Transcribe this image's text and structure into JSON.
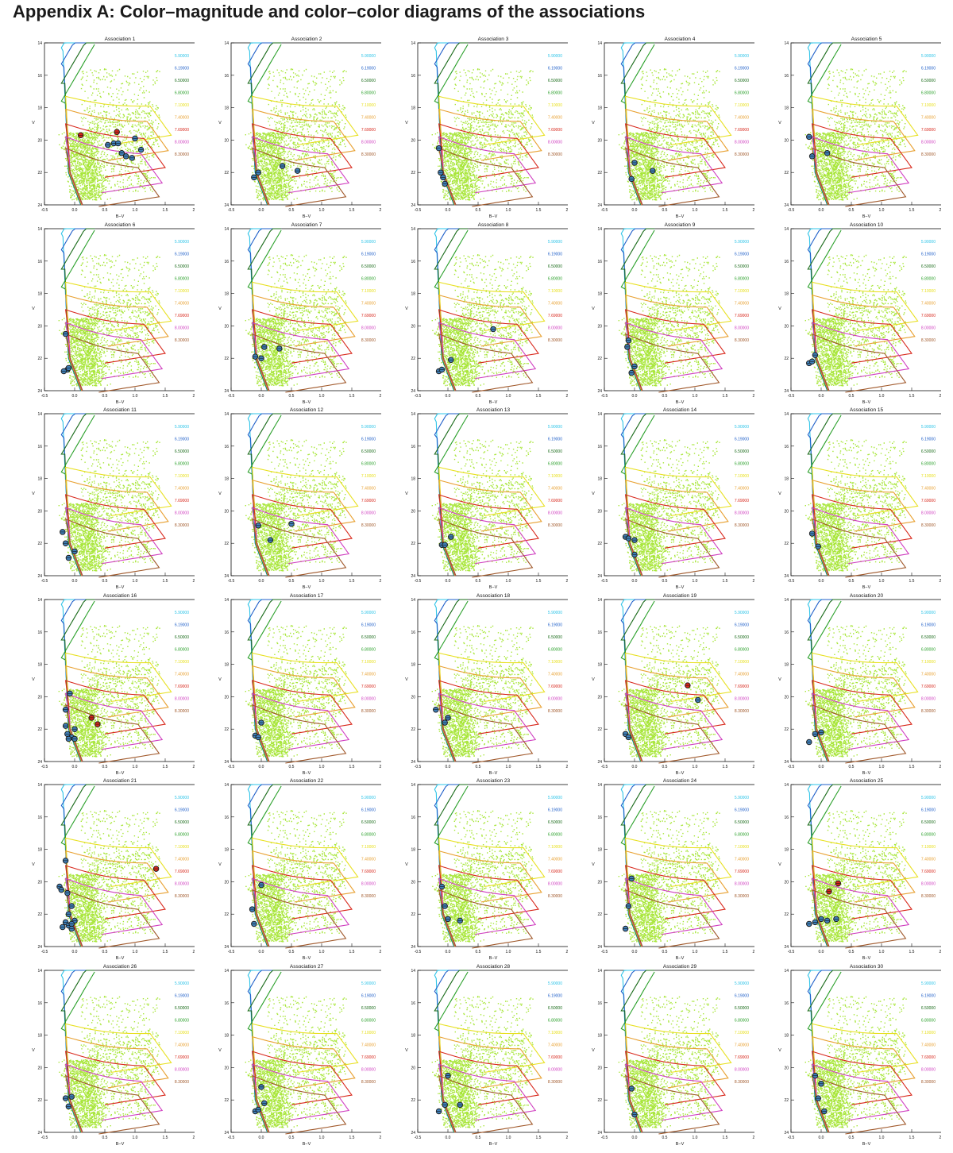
{
  "page": {
    "title": "Appendix A: Color–magnitude and color–color diagrams of the associations"
  },
  "colors": {
    "field_stars": "#a8e63a",
    "star_fill": "#3f7fb8",
    "star_fill_red": "#d8281c",
    "star_ring": "#1a1a1a"
  },
  "shared_axes": {
    "xlabel": "B−V",
    "ylabel": "V",
    "xlim": [
      -0.5,
      2.0
    ],
    "ylim": [
      24,
      14
    ],
    "x_ticks": [
      "-0.5",
      "0.0",
      "0.5",
      "1.0",
      "1.5",
      "2.0"
    ],
    "x_tick_values": [
      -0.5,
      0.0,
      0.5,
      1.0,
      1.5,
      2.0
    ],
    "y_ticks": [
      "14",
      "16",
      "18",
      "20",
      "22",
      "24"
    ],
    "y_tick_values": [
      14,
      16,
      18,
      20,
      22,
      24
    ]
  },
  "isochrones": [
    {
      "label": "5.90000",
      "color": "#2ec4e8"
    },
    {
      "label": "6.19000",
      "color": "#1f5fc9"
    },
    {
      "label": "6.50000",
      "color": "#1a6b1a"
    },
    {
      "label": "6.80000",
      "color": "#2aa02a"
    },
    {
      "label": "7.10000",
      "color": "#e8e020"
    },
    {
      "label": "7.40000",
      "color": "#e8a030"
    },
    {
      "label": "7.69000",
      "color": "#d8281c"
    },
    {
      "label": "8.00000",
      "color": "#d040c0"
    },
    {
      "label": "8.30000",
      "color": "#a0582a"
    }
  ],
  "chart_data": [
    {
      "type": "scatter",
      "title": "Association 1",
      "xlabel": "B−V",
      "ylabel": "V",
      "xlim": [
        -0.5,
        2.0
      ],
      "ylim": [
        24,
        14
      ],
      "series": [
        {
          "name": "members",
          "color": "#3f7fb8",
          "x": [
            0.55,
            0.65,
            0.72,
            0.78,
            0.85,
            0.95,
            1.0,
            1.1
          ],
          "y": [
            20.3,
            20.2,
            20.2,
            20.8,
            21.0,
            21.1,
            19.9,
            20.6
          ]
        },
        {
          "name": "members (red)",
          "color": "#d8281c",
          "x": [
            0.1,
            0.7
          ],
          "y": [
            19.7,
            19.5
          ]
        }
      ]
    },
    {
      "type": "scatter",
      "title": "Association 2",
      "xlabel": "B−V",
      "ylabel": "V",
      "xlim": [
        -0.5,
        2.0
      ],
      "ylim": [
        24,
        14
      ],
      "series": [
        {
          "name": "members",
          "color": "#3f7fb8",
          "x": [
            -0.12,
            -0.05,
            0.35,
            0.6
          ],
          "y": [
            22.3,
            22.0,
            21.6,
            21.9
          ]
        }
      ]
    },
    {
      "type": "scatter",
      "title": "Association 3",
      "xlabel": "B−V",
      "ylabel": "V",
      "xlim": [
        -0.5,
        2.0
      ],
      "ylim": [
        24,
        14
      ],
      "series": [
        {
          "name": "members",
          "color": "#3f7fb8",
          "x": [
            -0.15,
            -0.12,
            -0.08,
            -0.05
          ],
          "y": [
            20.5,
            22.0,
            22.3,
            22.7
          ]
        }
      ]
    },
    {
      "type": "scatter",
      "title": "Association 4",
      "xlabel": "B−V",
      "ylabel": "V",
      "xlim": [
        -0.5,
        2.0
      ],
      "ylim": [
        24,
        14
      ],
      "series": [
        {
          "name": "members",
          "color": "#3f7fb8",
          "x": [
            -0.05,
            0.0,
            0.3
          ],
          "y": [
            22.4,
            21.4,
            21.9
          ]
        }
      ]
    },
    {
      "type": "scatter",
      "title": "Association 5",
      "xlabel": "B−V",
      "ylabel": "V",
      "xlim": [
        -0.5,
        2.0
      ],
      "ylim": [
        24,
        14
      ],
      "series": [
        {
          "name": "members",
          "color": "#3f7fb8",
          "x": [
            -0.2,
            -0.15,
            0.1
          ],
          "y": [
            19.8,
            21.0,
            20.8
          ]
        }
      ]
    },
    {
      "type": "scatter",
      "title": "Association 6",
      "xlabel": "B−V",
      "ylabel": "V",
      "xlim": [
        -0.5,
        2.0
      ],
      "ylim": [
        24,
        14
      ],
      "series": [
        {
          "name": "members",
          "color": "#3f7fb8",
          "x": [
            -0.15,
            -0.12,
            -0.18,
            -0.1
          ],
          "y": [
            20.5,
            22.7,
            22.8,
            22.6
          ]
        }
      ]
    },
    {
      "type": "scatter",
      "title": "Association 7",
      "xlabel": "B−V",
      "ylabel": "V",
      "xlim": [
        -0.5,
        2.0
      ],
      "ylim": [
        24,
        14
      ],
      "series": [
        {
          "name": "members",
          "color": "#3f7fb8",
          "x": [
            -0.1,
            0.0,
            0.05,
            0.3
          ],
          "y": [
            21.9,
            22.0,
            21.3,
            21.4
          ]
        }
      ]
    },
    {
      "type": "scatter",
      "title": "Association 8",
      "xlabel": "B−V",
      "ylabel": "V",
      "xlim": [
        -0.5,
        2.0
      ],
      "ylim": [
        24,
        14
      ],
      "series": [
        {
          "name": "members",
          "color": "#3f7fb8",
          "x": [
            -0.15,
            -0.1,
            0.05,
            0.75
          ],
          "y": [
            22.8,
            22.7,
            22.1,
            20.2
          ]
        }
      ]
    },
    {
      "type": "scatter",
      "title": "Association 9",
      "xlabel": "B−V",
      "ylabel": "V",
      "xlim": [
        -0.5,
        2.0
      ],
      "ylim": [
        24,
        14
      ],
      "series": [
        {
          "name": "members",
          "color": "#3f7fb8",
          "x": [
            -0.12,
            -0.1,
            -0.05,
            0.0
          ],
          "y": [
            21.3,
            20.9,
            22.9,
            22.5
          ]
        }
      ]
    },
    {
      "type": "scatter",
      "title": "Association 10",
      "xlabel": "B−V",
      "ylabel": "V",
      "xlim": [
        -0.5,
        2.0
      ],
      "ylim": [
        24,
        14
      ],
      "series": [
        {
          "name": "members",
          "color": "#3f7fb8",
          "x": [
            -0.2,
            -0.15,
            -0.1
          ],
          "y": [
            22.3,
            22.2,
            21.8
          ]
        }
      ]
    },
    {
      "type": "scatter",
      "title": "Association 11",
      "xlabel": "B−V",
      "ylabel": "V",
      "xlim": [
        -0.5,
        2.0
      ],
      "ylim": [
        24,
        14
      ],
      "series": [
        {
          "name": "members",
          "color": "#3f7fb8",
          "x": [
            -0.2,
            -0.15,
            -0.1,
            0.0
          ],
          "y": [
            21.3,
            22.0,
            22.9,
            22.5
          ]
        }
      ]
    },
    {
      "type": "scatter",
      "title": "Association 12",
      "xlabel": "B−V",
      "ylabel": "V",
      "xlim": [
        -0.5,
        2.0
      ],
      "ylim": [
        24,
        14
      ],
      "series": [
        {
          "name": "members",
          "color": "#3f7fb8",
          "x": [
            -0.05,
            0.15,
            0.5
          ],
          "y": [
            20.9,
            21.8,
            20.8
          ]
        }
      ]
    },
    {
      "type": "scatter",
      "title": "Association 13",
      "xlabel": "B−V",
      "ylabel": "V",
      "xlim": [
        -0.5,
        2.0
      ],
      "ylim": [
        24,
        14
      ],
      "series": [
        {
          "name": "members",
          "color": "#3f7fb8",
          "x": [
            -0.1,
            -0.05,
            0.05
          ],
          "y": [
            22.1,
            22.1,
            21.6
          ]
        }
      ]
    },
    {
      "type": "scatter",
      "title": "Association 14",
      "xlabel": "B−V",
      "ylabel": "V",
      "xlim": [
        -0.5,
        2.0
      ],
      "ylim": [
        24,
        14
      ],
      "series": [
        {
          "name": "members",
          "color": "#3f7fb8",
          "x": [
            -0.15,
            -0.1,
            0.0,
            0.0
          ],
          "y": [
            21.6,
            21.7,
            21.8,
            22.7
          ]
        }
      ]
    },
    {
      "type": "scatter",
      "title": "Association 15",
      "xlabel": "B−V",
      "ylabel": "V",
      "xlim": [
        -0.5,
        2.0
      ],
      "ylim": [
        24,
        14
      ],
      "series": [
        {
          "name": "members",
          "color": "#3f7fb8",
          "x": [
            -0.15,
            -0.05
          ],
          "y": [
            21.4,
            22.2
          ]
        }
      ]
    },
    {
      "type": "scatter",
      "title": "Association 16",
      "xlabel": "B−V",
      "ylabel": "V",
      "xlim": [
        -0.5,
        2.0
      ],
      "ylim": [
        24,
        14
      ],
      "series": [
        {
          "name": "members",
          "color": "#3f7fb8",
          "x": [
            -0.15,
            -0.08,
            -0.15,
            -0.12,
            -0.05,
            0.0,
            -0.1,
            0.0
          ],
          "y": [
            20.8,
            19.8,
            21.8,
            22.3,
            22.5,
            22.0,
            22.6,
            22.6
          ]
        },
        {
          "name": "members (red)",
          "color": "#d8281c",
          "x": [
            0.28,
            0.38
          ],
          "y": [
            21.3,
            21.7
          ]
        }
      ]
    },
    {
      "type": "scatter",
      "title": "Association 17",
      "xlabel": "B−V",
      "ylabel": "V",
      "xlim": [
        -0.5,
        2.0
      ],
      "ylim": [
        24,
        14
      ],
      "series": [
        {
          "name": "members",
          "color": "#3f7fb8",
          "x": [
            -0.1,
            -0.05,
            0.0
          ],
          "y": [
            22.4,
            22.5,
            21.6
          ]
        }
      ]
    },
    {
      "type": "scatter",
      "title": "Association 18",
      "xlabel": "B−V",
      "ylabel": "V",
      "xlim": [
        -0.5,
        2.0
      ],
      "ylim": [
        24,
        14
      ],
      "series": [
        {
          "name": "members",
          "color": "#3f7fb8",
          "x": [
            -0.2,
            -0.05,
            0.0
          ],
          "y": [
            20.8,
            21.6,
            21.3
          ]
        }
      ]
    },
    {
      "type": "scatter",
      "title": "Association 19",
      "xlabel": "B−V",
      "ylabel": "V",
      "xlim": [
        -0.5,
        2.0
      ],
      "ylim": [
        24,
        14
      ],
      "series": [
        {
          "name": "members",
          "color": "#3f7fb8",
          "x": [
            -0.15,
            -0.1,
            1.05
          ],
          "y": [
            22.3,
            22.5,
            20.2
          ]
        },
        {
          "name": "members (red)",
          "color": "#d8281c",
          "x": [
            0.88
          ],
          "y": [
            19.3
          ]
        }
      ]
    },
    {
      "type": "scatter",
      "title": "Association 20",
      "xlabel": "B−V",
      "ylabel": "V",
      "xlim": [
        -0.5,
        2.0
      ],
      "ylim": [
        24,
        14
      ],
      "series": [
        {
          "name": "members",
          "color": "#3f7fb8",
          "x": [
            -0.2,
            -0.1,
            0.0
          ],
          "y": [
            22.8,
            22.3,
            22.2
          ]
        }
      ]
    },
    {
      "type": "scatter",
      "title": "Association 21",
      "xlabel": "B−V",
      "ylabel": "V",
      "xlim": [
        -0.5,
        2.0
      ],
      "ylim": [
        24,
        14
      ],
      "series": [
        {
          "name": "members",
          "color": "#3f7fb8",
          "x": [
            -0.25,
            -0.22,
            -0.15,
            -0.12,
            -0.05,
            0.0,
            -0.2,
            -0.15,
            -0.1,
            -0.05,
            -0.1,
            -0.05
          ],
          "y": [
            20.3,
            20.5,
            18.7,
            20.7,
            21.5,
            22.4,
            22.8,
            22.5,
            22.7,
            22.6,
            22.0,
            22.9
          ]
        },
        {
          "name": "members (red)",
          "color": "#d8281c",
          "x": [
            1.35
          ],
          "y": [
            19.2
          ]
        }
      ]
    },
    {
      "type": "scatter",
      "title": "Association 22",
      "xlabel": "B−V",
      "ylabel": "V",
      "xlim": [
        -0.5,
        2.0
      ],
      "ylim": [
        24,
        14
      ],
      "series": [
        {
          "name": "members",
          "color": "#3f7fb8",
          "x": [
            -0.15,
            -0.12,
            0.0
          ],
          "y": [
            21.7,
            22.6,
            20.2
          ]
        }
      ]
    },
    {
      "type": "scatter",
      "title": "Association 23",
      "xlabel": "B−V",
      "ylabel": "V",
      "xlim": [
        -0.5,
        2.0
      ],
      "ylim": [
        24,
        14
      ],
      "series": [
        {
          "name": "members",
          "color": "#3f7fb8",
          "x": [
            -0.1,
            -0.05,
            0.0,
            0.2
          ],
          "y": [
            20.3,
            21.5,
            22.3,
            22.4
          ]
        }
      ]
    },
    {
      "type": "scatter",
      "title": "Association 24",
      "xlabel": "B−V",
      "ylabel": "V",
      "xlim": [
        -0.5,
        2.0
      ],
      "ylim": [
        24,
        14
      ],
      "series": [
        {
          "name": "members",
          "color": "#3f7fb8",
          "x": [
            -0.1,
            -0.05,
            -0.15
          ],
          "y": [
            21.5,
            19.8,
            22.9
          ]
        }
      ]
    },
    {
      "type": "scatter",
      "title": "Association 25",
      "xlabel": "B−V",
      "ylabel": "V",
      "xlim": [
        -0.5,
        2.0
      ],
      "ylim": [
        24,
        14
      ],
      "series": [
        {
          "name": "members",
          "color": "#3f7fb8",
          "x": [
            -0.2,
            -0.1,
            0.0,
            0.1,
            0.25
          ],
          "y": [
            22.6,
            22.5,
            22.3,
            22.4,
            22.3
          ]
        },
        {
          "name": "members (red)",
          "color": "#d8281c",
          "x": [
            0.13,
            0.28
          ],
          "y": [
            20.6,
            20.1
          ]
        }
      ]
    },
    {
      "type": "scatter",
      "title": "Association 26",
      "xlabel": "B−V",
      "ylabel": "V",
      "xlim": [
        -0.5,
        2.0
      ],
      "ylim": [
        24,
        14
      ],
      "series": [
        {
          "name": "members",
          "color": "#3f7fb8",
          "x": [
            -0.15,
            -0.05,
            -0.1
          ],
          "y": [
            21.9,
            21.8,
            22.4
          ]
        }
      ]
    },
    {
      "type": "scatter",
      "title": "Association 27",
      "xlabel": "B−V",
      "ylabel": "V",
      "xlim": [
        -0.5,
        2.0
      ],
      "ylim": [
        24,
        14
      ],
      "series": [
        {
          "name": "members",
          "color": "#3f7fb8",
          "x": [
            -0.1,
            -0.05,
            0.0,
            0.05
          ],
          "y": [
            22.7,
            22.6,
            21.2,
            22.2
          ]
        }
      ]
    },
    {
      "type": "scatter",
      "title": "Association 28",
      "xlabel": "B−V",
      "ylabel": "V",
      "xlim": [
        -0.5,
        2.0
      ],
      "ylim": [
        24,
        14
      ],
      "series": [
        {
          "name": "members",
          "color": "#3f7fb8",
          "x": [
            -0.15,
            -0.05,
            0.0,
            0.2
          ],
          "y": [
            22.7,
            22.3,
            20.5,
            22.3
          ]
        }
      ]
    },
    {
      "type": "scatter",
      "title": "Association 29",
      "xlabel": "B−V",
      "ylabel": "V",
      "xlim": [
        -0.5,
        2.0
      ],
      "ylim": [
        24,
        14
      ],
      "series": [
        {
          "name": "members",
          "color": "#3f7fb8",
          "x": [
            -0.05,
            0.0
          ],
          "y": [
            21.3,
            22.9
          ]
        }
      ]
    },
    {
      "type": "scatter",
      "title": "Association 30",
      "xlabel": "B−V",
      "ylabel": "V",
      "xlim": [
        -0.5,
        2.0
      ],
      "ylim": [
        24,
        14
      ],
      "series": [
        {
          "name": "members",
          "color": "#3f7fb8",
          "x": [
            -0.1,
            -0.05,
            0.0,
            0.05
          ],
          "y": [
            20.5,
            21.9,
            21.0,
            22.7
          ]
        }
      ]
    }
  ]
}
